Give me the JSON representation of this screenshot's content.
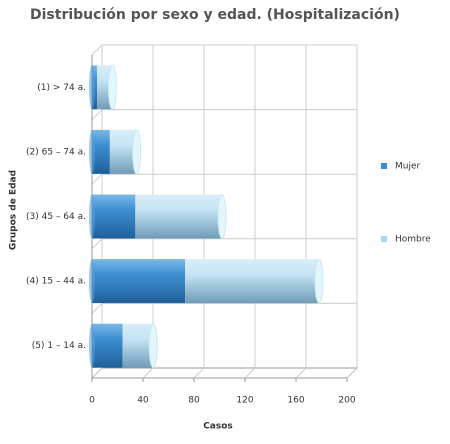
{
  "chart_data": {
    "type": "bar",
    "orientation": "horizontal",
    "stacked": true,
    "title": "Distribución por sexo y edad. (Hospitalización)",
    "x_label": "Casos",
    "y_label": "Grupos de Edad",
    "categories": [
      "(1) > 74 a.",
      "(2) 65 – 74 a.",
      "(3) 45 – 64 a.",
      "(4) 15 – 44 a.",
      "(5) 1 – 14 a."
    ],
    "series": [
      {
        "name": "Mujer",
        "color": "#3c8fd1",
        "values": [
          4,
          14,
          34,
          73,
          24
        ]
      },
      {
        "name": "Hombre",
        "color": "#a9d9f0",
        "values": [
          12,
          21,
          68,
          105,
          24
        ]
      }
    ],
    "xlim": [
      0,
      200
    ],
    "xticks": [
      0,
      40,
      80,
      120,
      160,
      200
    ],
    "grid": true,
    "legend": "right"
  }
}
